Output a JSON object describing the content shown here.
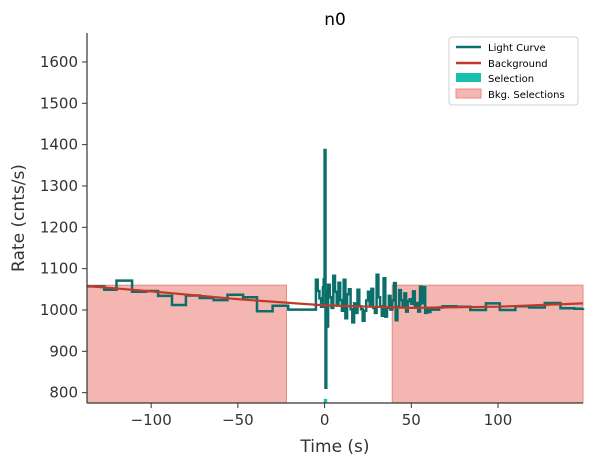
{
  "chart_data": {
    "type": "line",
    "title": "n0",
    "xlabel": "Time (s)",
    "ylabel": "Rate (cnts/s)",
    "xlim": [
      -137,
      149
    ],
    "ylim": [
      775,
      1670
    ],
    "xticks": [
      -100,
      -50,
      0,
      50,
      100
    ],
    "yticks": [
      800,
      900,
      1000,
      1100,
      1200,
      1300,
      1400,
      1500,
      1600
    ],
    "xtick_labels": [
      "−100",
      "−50",
      "0",
      "50",
      "100"
    ],
    "ytick_labels": [
      "800",
      "900",
      "1000",
      "1100",
      "1200",
      "1300",
      "1400",
      "1500",
      "1600"
    ],
    "grid": false,
    "legend_position": "top-right",
    "colors": {
      "light_curve": "#0a6e6a",
      "background": "#c0392b",
      "selection": "#1abfb0",
      "bkg_selection_fill": "#f4b6b0",
      "bkg_selection_edge": "#e88a80"
    },
    "legend": {
      "light_curve": "Light Curve",
      "background": "Background",
      "selection": "Selection",
      "bkg_selections": "Bkg. Selections"
    },
    "light_curve": {
      "x": [
        -137,
        -127,
        -120,
        -111,
        -103,
        -96,
        -88,
        -80,
        -72,
        -64,
        -56,
        -47,
        -39,
        -30,
        -21,
        -13,
        -8,
        -5,
        -4,
        -3,
        -2,
        -1,
        -0.5,
        0,
        0.5,
        1,
        1.5,
        2,
        3,
        4,
        5,
        6,
        7,
        8,
        9,
        10,
        11,
        12,
        13,
        14,
        15,
        16,
        17,
        18,
        19,
        20,
        21,
        22,
        23,
        24,
        25,
        26,
        27,
        28,
        29,
        30,
        31,
        32,
        33,
        34,
        35,
        36,
        37,
        38,
        39,
        40,
        41,
        42,
        43,
        44,
        45,
        46,
        47,
        48,
        49,
        50,
        51,
        52,
        53,
        54,
        55,
        56,
        57,
        58,
        59,
        60,
        61,
        66,
        68,
        76,
        84,
        93,
        101,
        110,
        118,
        127,
        136,
        144,
        149
      ],
      "y": [
        1057,
        1049,
        1071,
        1044,
        1046,
        1034,
        1012,
        1035,
        1029,
        1024,
        1037,
        1031,
        997,
        1010,
        1001,
        1001,
        1001,
        1073,
        1046,
        1028,
        1008,
        1055,
        1074,
        1387,
        812,
        1044,
        960,
        1061,
        1031,
        1005,
        1083,
        1044,
        1012,
        1066,
        1024,
        998,
        1073,
        980,
        1038,
        1050,
        1002,
        970,
        1016,
        993,
        1049,
        1009,
        1002,
        974,
        998,
        1023,
        1044,
        1010,
        1051,
        1005,
        993,
        1085,
        1031,
        1009,
        986,
        1077,
        984,
        1005,
        1034,
        1001,
        1023,
        1065,
        975,
        1008,
        1048,
        1024,
        1009,
        1040,
        996,
        1021,
        1026,
        1015,
        1045,
        1007,
        1017,
        996,
        1056,
        1016,
        1055,
        993,
        1002,
        995,
        1001,
        1006,
        1009,
        1008,
        1000,
        1016,
        1000,
        1009,
        1006,
        1017,
        1004,
        1003,
        1004
      ]
    },
    "background": {
      "x": [
        -137,
        -100,
        -50,
        0,
        50,
        100,
        149
      ],
      "y": [
        1058,
        1045,
        1026,
        1011,
        1005,
        1008,
        1016
      ]
    },
    "bkg_selections": [
      [
        -137,
        -22
      ],
      [
        39,
        149
      ]
    ],
    "selection": [
      -0.5,
      1.5
    ]
  }
}
